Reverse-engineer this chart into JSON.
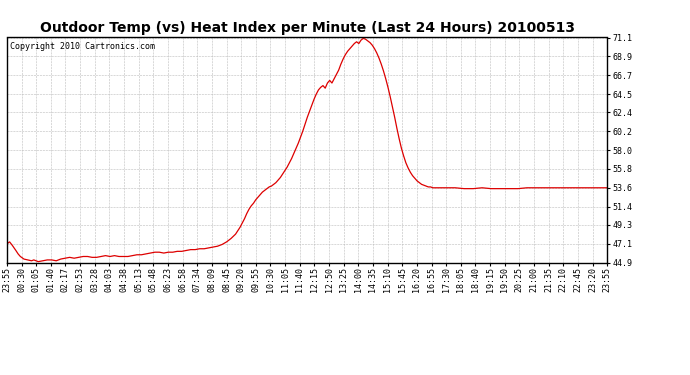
{
  "title": "Outdoor Temp (vs) Heat Index per Minute (Last 24 Hours) 20100513",
  "copyright_text": "Copyright 2010 Cartronics.com",
  "line_color": "#dd0000",
  "background_color": "#ffffff",
  "plot_bg_color": "#ffffff",
  "grid_color": "#bbbbbb",
  "yticks": [
    44.9,
    47.1,
    49.3,
    51.4,
    53.6,
    55.8,
    58.0,
    60.2,
    62.4,
    64.5,
    66.7,
    68.9,
    71.1
  ],
  "ymin": 44.9,
  "ymax": 71.1,
  "xtick_labels": [
    "23:55",
    "00:30",
    "01:05",
    "01:40",
    "02:17",
    "02:53",
    "03:28",
    "04:03",
    "04:38",
    "05:13",
    "05:48",
    "06:23",
    "06:58",
    "07:34",
    "08:09",
    "08:45",
    "09:20",
    "09:55",
    "10:30",
    "11:05",
    "11:40",
    "12:15",
    "12:50",
    "13:25",
    "14:00",
    "14:35",
    "15:10",
    "15:45",
    "16:20",
    "16:55",
    "17:30",
    "18:05",
    "18:40",
    "19:15",
    "19:50",
    "20:25",
    "21:00",
    "21:35",
    "22:10",
    "22:45",
    "23:20",
    "23:55"
  ],
  "curve_points": [
    [
      0,
      47.0
    ],
    [
      3,
      47.2
    ],
    [
      6,
      47.3
    ],
    [
      9,
      47.1
    ],
    [
      12,
      46.9
    ],
    [
      16,
      46.6
    ],
    [
      20,
      46.3
    ],
    [
      25,
      45.9
    ],
    [
      30,
      45.6
    ],
    [
      38,
      45.3
    ],
    [
      46,
      45.2
    ],
    [
      55,
      45.1
    ],
    [
      60,
      45.2
    ],
    [
      65,
      45.1
    ],
    [
      70,
      45.0
    ],
    [
      80,
      45.1
    ],
    [
      90,
      45.2
    ],
    [
      100,
      45.2
    ],
    [
      110,
      45.1
    ],
    [
      120,
      45.3
    ],
    [
      130,
      45.4
    ],
    [
      140,
      45.5
    ],
    [
      150,
      45.4
    ],
    [
      160,
      45.5
    ],
    [
      170,
      45.6
    ],
    [
      180,
      45.6
    ],
    [
      190,
      45.5
    ],
    [
      200,
      45.5
    ],
    [
      210,
      45.6
    ],
    [
      220,
      45.7
    ],
    [
      230,
      45.6
    ],
    [
      240,
      45.7
    ],
    [
      250,
      45.6
    ],
    [
      260,
      45.6
    ],
    [
      270,
      45.6
    ],
    [
      280,
      45.7
    ],
    [
      290,
      45.8
    ],
    [
      300,
      45.8
    ],
    [
      310,
      45.9
    ],
    [
      320,
      46.0
    ],
    [
      330,
      46.1
    ],
    [
      340,
      46.1
    ],
    [
      350,
      46.0
    ],
    [
      360,
      46.1
    ],
    [
      370,
      46.1
    ],
    [
      380,
      46.2
    ],
    [
      390,
      46.2
    ],
    [
      400,
      46.3
    ],
    [
      410,
      46.4
    ],
    [
      420,
      46.4
    ],
    [
      430,
      46.5
    ],
    [
      440,
      46.5
    ],
    [
      450,
      46.6
    ],
    [
      460,
      46.7
    ],
    [
      470,
      46.8
    ],
    [
      480,
      47.0
    ],
    [
      490,
      47.3
    ],
    [
      500,
      47.7
    ],
    [
      510,
      48.2
    ],
    [
      515,
      48.6
    ],
    [
      520,
      49.0
    ],
    [
      525,
      49.5
    ],
    [
      530,
      50.0
    ],
    [
      535,
      50.6
    ],
    [
      540,
      51.1
    ],
    [
      545,
      51.5
    ],
    [
      550,
      51.8
    ],
    [
      555,
      52.2
    ],
    [
      560,
      52.5
    ],
    [
      565,
      52.8
    ],
    [
      570,
      53.1
    ],
    [
      575,
      53.3
    ],
    [
      580,
      53.5
    ],
    [
      585,
      53.7
    ],
    [
      590,
      53.8
    ],
    [
      595,
      54.0
    ],
    [
      600,
      54.2
    ],
    [
      605,
      54.5
    ],
    [
      610,
      54.8
    ],
    [
      615,
      55.2
    ],
    [
      620,
      55.6
    ],
    [
      625,
      56.0
    ],
    [
      630,
      56.5
    ],
    [
      635,
      57.0
    ],
    [
      640,
      57.6
    ],
    [
      645,
      58.2
    ],
    [
      650,
      58.8
    ],
    [
      655,
      59.5
    ],
    [
      660,
      60.2
    ],
    [
      665,
      61.0
    ],
    [
      670,
      61.8
    ],
    [
      675,
      62.5
    ],
    [
      680,
      63.2
    ],
    [
      685,
      63.9
    ],
    [
      690,
      64.5
    ],
    [
      695,
      65.0
    ],
    [
      700,
      65.3
    ],
    [
      705,
      65.5
    ],
    [
      710,
      65.2
    ],
    [
      715,
      65.8
    ],
    [
      720,
      66.1
    ],
    [
      725,
      65.8
    ],
    [
      730,
      66.3
    ],
    [
      735,
      66.8
    ],
    [
      740,
      67.3
    ],
    [
      745,
      68.0
    ],
    [
      750,
      68.6
    ],
    [
      755,
      69.1
    ],
    [
      760,
      69.5
    ],
    [
      765,
      69.8
    ],
    [
      770,
      70.1
    ],
    [
      775,
      70.4
    ],
    [
      780,
      70.6
    ],
    [
      785,
      70.4
    ],
    [
      790,
      70.8
    ],
    [
      795,
      71.0
    ],
    [
      800,
      70.9
    ],
    [
      805,
      70.7
    ],
    [
      810,
      70.5
    ],
    [
      815,
      70.2
    ],
    [
      820,
      69.8
    ],
    [
      825,
      69.3
    ],
    [
      830,
      68.7
    ],
    [
      835,
      68.0
    ],
    [
      840,
      67.2
    ],
    [
      845,
      66.3
    ],
    [
      850,
      65.3
    ],
    [
      855,
      64.2
    ],
    [
      860,
      63.0
    ],
    [
      865,
      61.8
    ],
    [
      870,
      60.5
    ],
    [
      875,
      59.3
    ],
    [
      880,
      58.2
    ],
    [
      885,
      57.3
    ],
    [
      890,
      56.5
    ],
    [
      895,
      55.9
    ],
    [
      900,
      55.4
    ],
    [
      905,
      55.0
    ],
    [
      910,
      54.7
    ],
    [
      915,
      54.4
    ],
    [
      920,
      54.2
    ],
    [
      925,
      54.0
    ],
    [
      930,
      53.9
    ],
    [
      935,
      53.8
    ],
    [
      940,
      53.7
    ],
    [
      945,
      53.7
    ],
    [
      950,
      53.6
    ],
    [
      960,
      53.6
    ],
    [
      980,
      53.6
    ],
    [
      1000,
      53.6
    ],
    [
      1020,
      53.5
    ],
    [
      1040,
      53.5
    ],
    [
      1060,
      53.6
    ],
    [
      1080,
      53.5
    ],
    [
      1100,
      53.5
    ],
    [
      1120,
      53.5
    ],
    [
      1140,
      53.5
    ],
    [
      1160,
      53.6
    ],
    [
      1180,
      53.6
    ],
    [
      1200,
      53.6
    ],
    [
      1220,
      53.6
    ],
    [
      1240,
      53.6
    ],
    [
      1260,
      53.6
    ],
    [
      1280,
      53.6
    ],
    [
      1300,
      53.6
    ],
    [
      1320,
      53.6
    ],
    [
      1339,
      53.6
    ]
  ],
  "title_fontsize": 10,
  "tick_fontsize": 6,
  "copyright_fontsize": 6
}
